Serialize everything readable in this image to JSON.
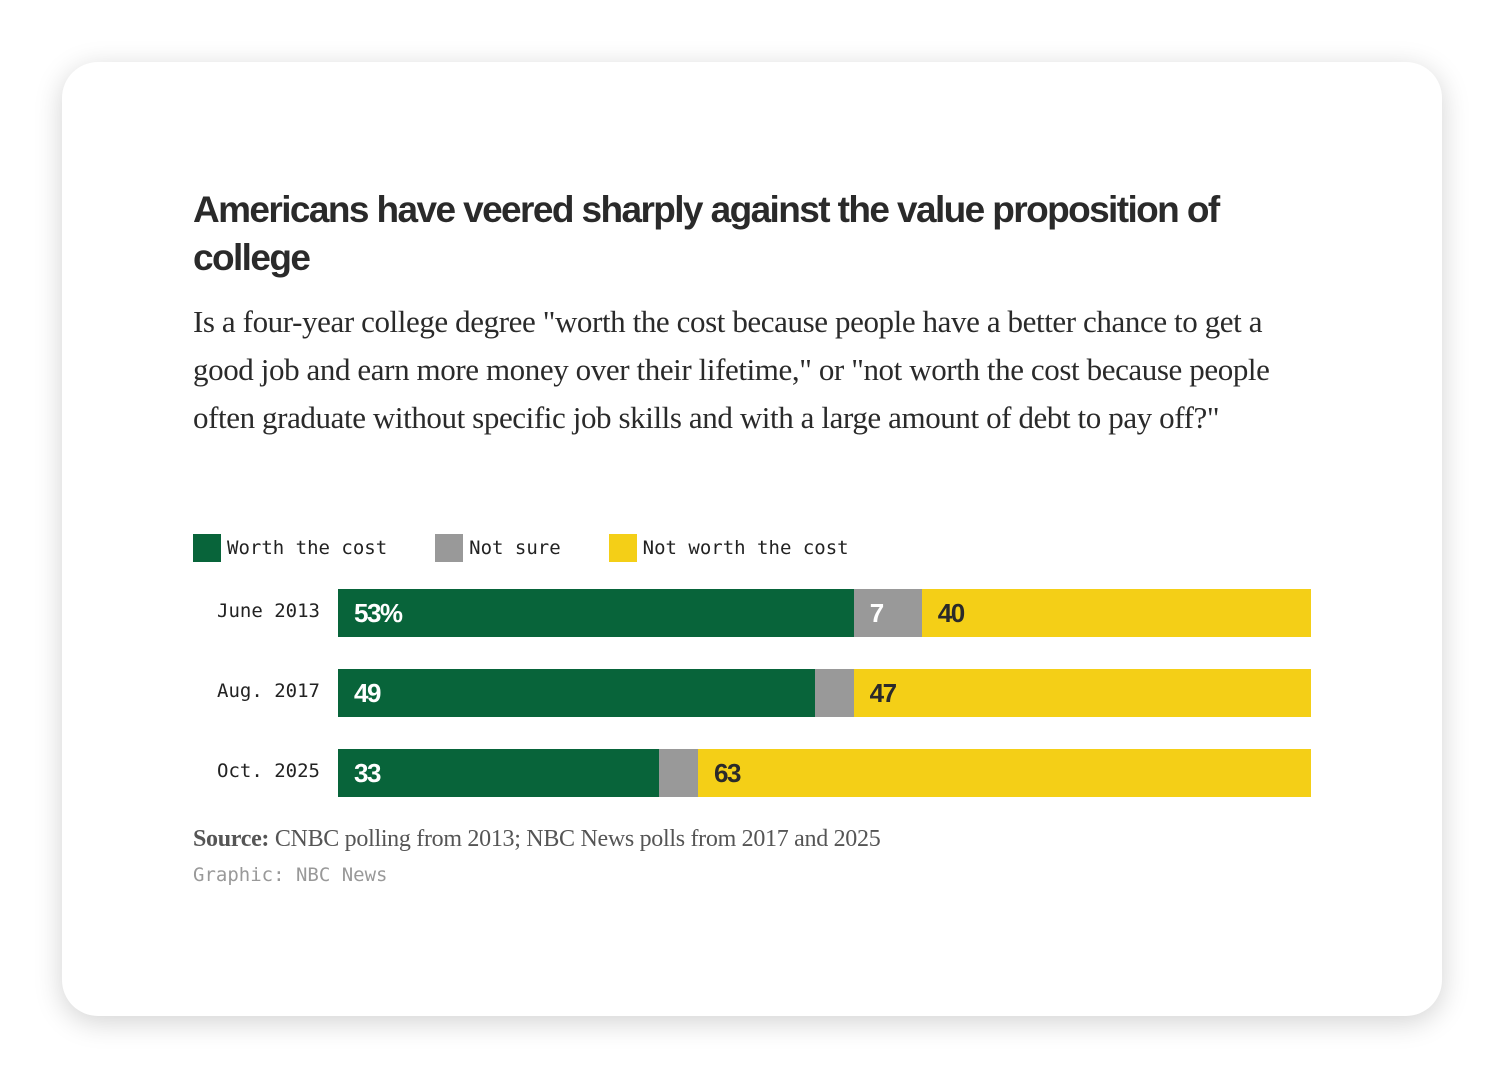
{
  "chart_data": {
    "type": "bar",
    "orientation": "horizontal-stacked",
    "title": "Americans have veered sharply against the value proposition of college",
    "subtitle": "Is a four-year college degree \"worth the cost because people have a better chance to get a good job and earn more money over their lifetime,\" or \"not worth the cost because people often graduate without specific job skills and with a large amount of debt to pay off?\"",
    "categories": [
      "June 2013",
      "Aug. 2017",
      "Oct. 2025"
    ],
    "series": [
      {
        "name": "Worth the cost",
        "color": "#08643a",
        "label_color": "#ffffff",
        "values": [
          53,
          49,
          33
        ],
        "labels": [
          "53%",
          "49",
          "33"
        ]
      },
      {
        "name": "Not sure",
        "color": "#999999",
        "label_color": "#ffffff",
        "values": [
          7,
          4,
          4
        ],
        "labels": [
          "7",
          null,
          null
        ]
      },
      {
        "name": "Not worth the cost",
        "color": "#f4cf17",
        "label_color": "#2a2a2a",
        "values": [
          40,
          47,
          63
        ],
        "labels": [
          "40",
          "47",
          "63"
        ]
      }
    ],
    "xlim": [
      0,
      100
    ],
    "legend_position": "top-left",
    "grid": false
  },
  "source_label": "Source:",
  "source_text": " CNBC polling from 2013; NBC News polls from 2017 and 2025",
  "credit": "Graphic: NBC News"
}
